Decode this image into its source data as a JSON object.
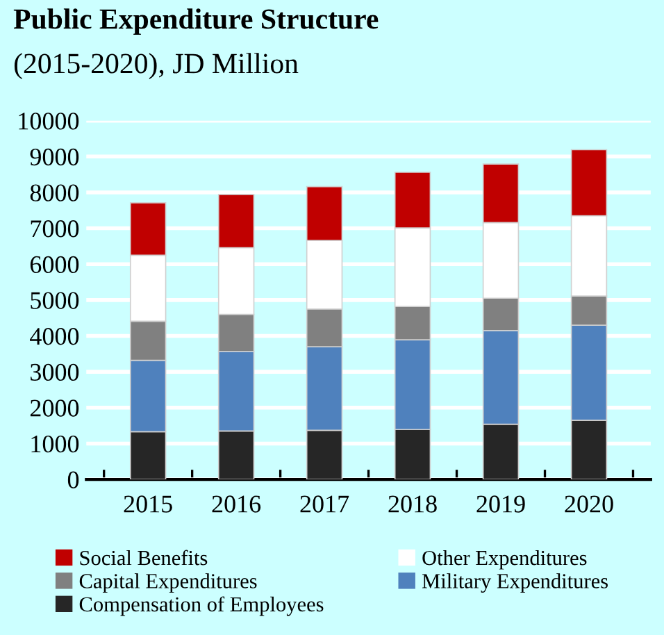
{
  "chart_data": {
    "type": "bar",
    "title": "Public Expenditure Structure",
    "subtitle": "(2015-2020), JD Million",
    "categories": [
      "2015",
      "2016",
      "2017",
      "2018",
      "2019",
      "2020"
    ],
    "stacked": true,
    "series": [
      {
        "name": "Compensation of Employees",
        "color": "#262626",
        "values": [
          1330,
          1350,
          1370,
          1390,
          1540,
          1650
        ]
      },
      {
        "name": "Military Expenditures",
        "color": "#4f81bd",
        "values": [
          1990,
          2220,
          2330,
          2500,
          2610,
          2650
        ]
      },
      {
        "name": "Capital Expenditures",
        "color": "#808080",
        "values": [
          1090,
          1030,
          1050,
          930,
          900,
          810
        ]
      },
      {
        "name": "Other Expenditures",
        "color": "#ffffff",
        "values": [
          1840,
          1860,
          1910,
          2190,
          2110,
          2240
        ]
      },
      {
        "name": "Social Benefits",
        "color": "#c00000",
        "values": [
          1460,
          1480,
          1500,
          1550,
          1630,
          1840
        ]
      }
    ],
    "ylim": [
      0,
      10000
    ],
    "yticks": [
      0,
      1000,
      2000,
      3000,
      4000,
      5000,
      6000,
      7000,
      8000,
      9000,
      10000
    ],
    "grid": "y",
    "legend": "bottom"
  }
}
